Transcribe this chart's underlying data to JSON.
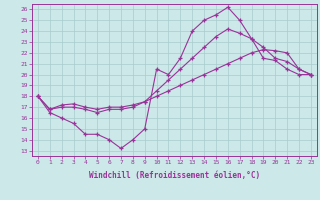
{
  "xlabel": "Windchill (Refroidissement éolien,°C)",
  "x_hours": [
    0,
    1,
    2,
    3,
    4,
    5,
    6,
    7,
    8,
    9,
    10,
    11,
    12,
    13,
    14,
    15,
    16,
    17,
    18,
    19,
    20,
    21,
    22,
    23
  ],
  "line_top": [
    18.0,
    16.5,
    16.0,
    15.5,
    14.5,
    14.5,
    14.0,
    13.2,
    14.0,
    15.0,
    20.5,
    20.0,
    21.5,
    24.0,
    25.0,
    25.5,
    26.2,
    25.0,
    23.3,
    21.5,
    21.3,
    20.5,
    20.0,
    20.0
  ],
  "line_mid": [
    18.0,
    16.8,
    17.0,
    17.0,
    16.8,
    16.5,
    16.8,
    16.8,
    17.0,
    17.5,
    18.5,
    19.5,
    20.5,
    21.5,
    22.5,
    23.5,
    24.2,
    23.8,
    23.3,
    22.5,
    21.5,
    21.2,
    20.5,
    20.0
  ],
  "line_bot": [
    18.0,
    16.8,
    17.2,
    17.3,
    17.0,
    16.8,
    17.0,
    17.0,
    17.2,
    17.5,
    18.0,
    18.5,
    19.0,
    19.5,
    20.0,
    20.5,
    21.0,
    21.5,
    22.0,
    22.3,
    22.2,
    22.0,
    20.5,
    20.0
  ],
  "color": "#993399",
  "bg_color": "#cce8e8",
  "grid_color": "#a8cccc",
  "ylim_min": 12.5,
  "ylim_max": 26.5,
  "yticks": [
    13,
    14,
    15,
    16,
    17,
    18,
    19,
    20,
    21,
    22,
    23,
    24,
    25,
    26
  ],
  "xticks": [
    0,
    1,
    2,
    3,
    4,
    5,
    6,
    7,
    8,
    9,
    10,
    11,
    12,
    13,
    14,
    15,
    16,
    17,
    18,
    19,
    20,
    21,
    22,
    23
  ],
  "marker": "+"
}
